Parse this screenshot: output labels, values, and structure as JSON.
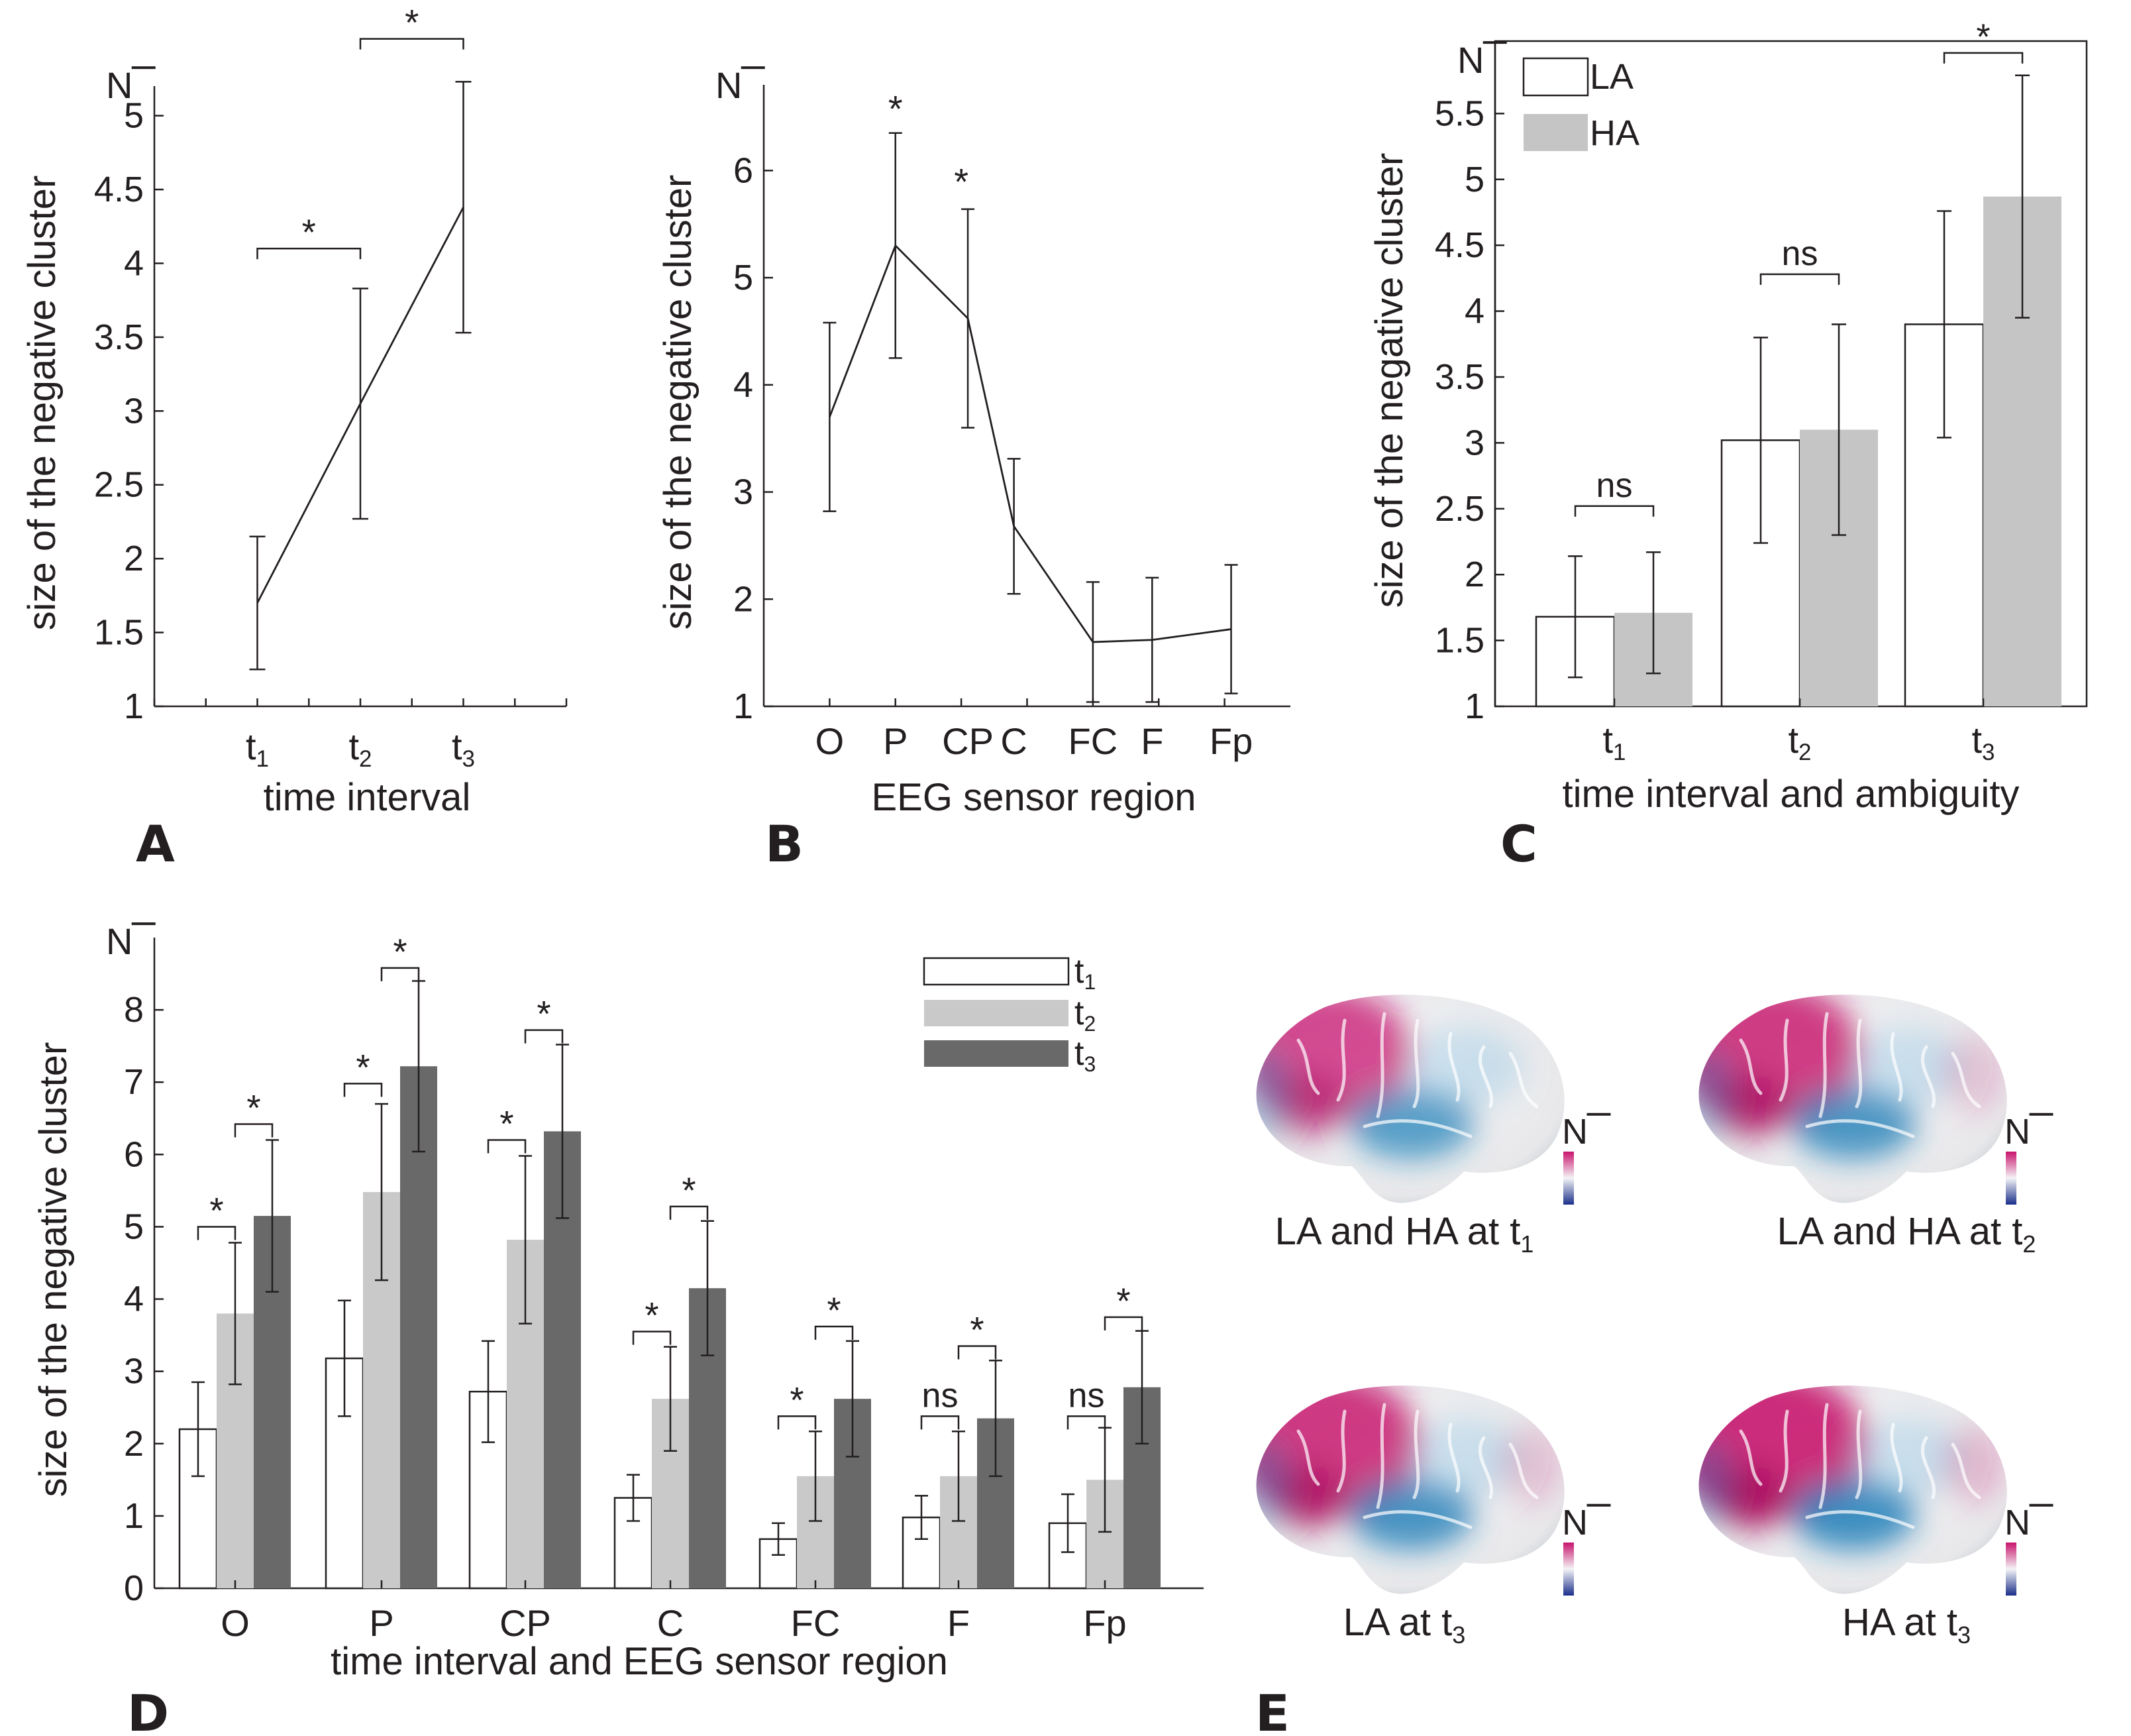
{
  "colors": {
    "ink": "#231f20",
    "white_bar": "#ffffff",
    "light_bar": "#c9c9c9",
    "mid_bar": "#c5c5c5",
    "dark_bar": "#696969",
    "brain_pos": "#c8146e",
    "brain_neg": "#1f7fb8",
    "brain_base": "#e8e8ea"
  },
  "y_axis_label": "size of the negative cluster",
  "n_bar_label": "N",
  "panels": {
    "A": {
      "label": "A"
    },
    "B": {
      "label": "B"
    },
    "C": {
      "label": "C"
    },
    "D": {
      "label": "D"
    },
    "E": {
      "label": "E"
    }
  },
  "chart_data": [
    {
      "id": "A",
      "type": "line",
      "title": "",
      "xlabel": "time interval",
      "ylabel": "size of the negative cluster",
      "categories": [
        "t1",
        "t2",
        "t3"
      ],
      "tick_labels": [
        {
          "base": "t",
          "sub": "1"
        },
        {
          "base": "t",
          "sub": "2"
        },
        {
          "base": "t",
          "sub": "3"
        }
      ],
      "x_positions": [
        1,
        2,
        3
      ],
      "xlim": [
        0,
        4
      ],
      "values": [
        1.7,
        3.05,
        4.38
      ],
      "errors": [
        0.45,
        0.78,
        0.85
      ],
      "ylim": [
        1,
        5.2
      ],
      "yticks": [
        1,
        1.5,
        2,
        2.5,
        3,
        3.5,
        4,
        4.5,
        5
      ],
      "significance": [
        {
          "from": 1,
          "to": 2,
          "level": 4.1,
          "text": "*"
        },
        {
          "from": 2,
          "to": 3,
          "level": 5.52,
          "text": "*"
        }
      ]
    },
    {
      "id": "B",
      "type": "line",
      "title": "",
      "xlabel": "EEG sensor region",
      "ylabel": "size of the negative cluster",
      "categories": [
        "O",
        "P",
        "CP",
        "C",
        "FC",
        "F",
        "Fp"
      ],
      "tick_labels": [
        {
          "base": "O"
        },
        {
          "base": "P"
        },
        {
          "base": "CP"
        },
        {
          "base": "C"
        },
        {
          "base": "FC"
        },
        {
          "base": "F"
        },
        {
          "base": "Fp"
        }
      ],
      "x_positions": [
        1,
        2,
        3.1,
        3.8,
        5,
        5.9,
        7.1
      ],
      "xlim": [
        0,
        8
      ],
      "values": [
        3.7,
        5.3,
        4.62,
        2.68,
        1.6,
        1.62,
        1.72
      ],
      "errors": [
        0.88,
        1.05,
        1.02,
        0.63,
        0.56,
        0.58,
        0.6
      ],
      "ylim": [
        1,
        6.8
      ],
      "yticks": [
        1,
        2,
        3,
        4,
        5,
        6
      ],
      "stars": [
        {
          "x": 2,
          "level": 6.58,
          "text": "*"
        },
        {
          "x": 3,
          "level": 5.9,
          "text": "*"
        }
      ]
    },
    {
      "id": "C",
      "type": "bar",
      "title": "",
      "xlabel": "time interval and ambiguity",
      "ylabel": "size of the negative cluster",
      "categories": [
        "t1",
        "t2",
        "t3"
      ],
      "tick_labels": [
        {
          "base": "t",
          "sub": "1"
        },
        {
          "base": "t",
          "sub": "2"
        },
        {
          "base": "t",
          "sub": "3"
        }
      ],
      "series": [
        {
          "name": "LA",
          "values": [
            1.68,
            3.02,
            3.9
          ],
          "errors": [
            0.46,
            0.78,
            0.86
          ]
        },
        {
          "name": "HA",
          "values": [
            1.71,
            3.1,
            4.87
          ],
          "errors": [
            0.46,
            0.8,
            0.92
          ]
        }
      ],
      "ylim": [
        1,
        6.05
      ],
      "yticks": [
        1,
        1.5,
        2,
        2.5,
        3,
        3.5,
        4,
        4.5,
        5,
        5.5
      ],
      "significance": [
        {
          "group": 0,
          "level": 2.52,
          "text": "ns"
        },
        {
          "group": 1,
          "level": 4.28,
          "text": "ns"
        },
        {
          "group": 2,
          "level": 5.96,
          "text": "*"
        }
      ],
      "legend": "top-left"
    },
    {
      "id": "D",
      "type": "bar",
      "title": "",
      "xlabel": "time interval and EEG sensor region",
      "ylabel": "size of the negative cluster",
      "categories": [
        "O",
        "P",
        "CP",
        "C",
        "FC",
        "F",
        "Fp"
      ],
      "tick_labels": [
        {
          "base": "O"
        },
        {
          "base": "P"
        },
        {
          "base": "CP"
        },
        {
          "base": "C"
        },
        {
          "base": "FC"
        },
        {
          "base": "F"
        },
        {
          "base": "Fp"
        }
      ],
      "series": [
        {
          "name": "t1",
          "sub": "1",
          "values": [
            2.2,
            3.18,
            2.72,
            1.25,
            0.68,
            0.98,
            0.9
          ],
          "errors": [
            0.65,
            0.8,
            0.7,
            0.32,
            0.22,
            0.3,
            0.4
          ]
        },
        {
          "name": "t2",
          "sub": "2",
          "values": [
            3.8,
            5.48,
            4.82,
            2.62,
            1.55,
            1.55,
            1.5
          ],
          "errors": [
            0.98,
            1.22,
            1.16,
            0.72,
            0.62,
            0.62,
            0.72
          ]
        },
        {
          "name": "t3",
          "sub": "3",
          "values": [
            5.15,
            7.22,
            6.32,
            4.15,
            2.62,
            2.35,
            2.78
          ],
          "errors": [
            1.05,
            1.18,
            1.2,
            0.93,
            0.8,
            0.8,
            0.78
          ]
        }
      ],
      "ylim": [
        0,
        9
      ],
      "yticks": [
        0,
        1,
        2,
        3,
        4,
        5,
        6,
        7,
        8
      ],
      "significance": [
        {
          "group": 0,
          "pair": 0,
          "level": 5.0,
          "text": "*"
        },
        {
          "group": 0,
          "pair": 1,
          "level": 6.42,
          "text": "*"
        },
        {
          "group": 1,
          "pair": 0,
          "level": 6.98,
          "text": "*"
        },
        {
          "group": 1,
          "pair": 1,
          "level": 8.58,
          "text": "*"
        },
        {
          "group": 2,
          "pair": 0,
          "level": 6.2,
          "text": "*"
        },
        {
          "group": 2,
          "pair": 1,
          "level": 7.72,
          "text": "*"
        },
        {
          "group": 3,
          "pair": 0,
          "level": 3.55,
          "text": "*"
        },
        {
          "group": 3,
          "pair": 1,
          "level": 5.28,
          "text": "*"
        },
        {
          "group": 4,
          "pair": 0,
          "level": 2.38,
          "text": "*"
        },
        {
          "group": 4,
          "pair": 1,
          "level": 3.62,
          "text": "*"
        },
        {
          "group": 5,
          "pair": 0,
          "level": 2.38,
          "text": "ns"
        },
        {
          "group": 5,
          "pair": 1,
          "level": 3.35,
          "text": "*"
        },
        {
          "group": 6,
          "pair": 0,
          "level": 2.38,
          "text": "ns"
        },
        {
          "group": 6,
          "pair": 1,
          "level": 3.75,
          "text": "*"
        }
      ],
      "legend": "top-right"
    }
  ],
  "brains": [
    {
      "caption": "LA and HA at t",
      "sub": "1",
      "intensity": 0.55
    },
    {
      "caption": "LA and HA at t",
      "sub": "2",
      "intensity": 0.8
    },
    {
      "caption": "LA at t",
      "sub": "3",
      "intensity": 0.85
    },
    {
      "caption": "HA at t",
      "sub": "3",
      "intensity": 1.0
    }
  ]
}
